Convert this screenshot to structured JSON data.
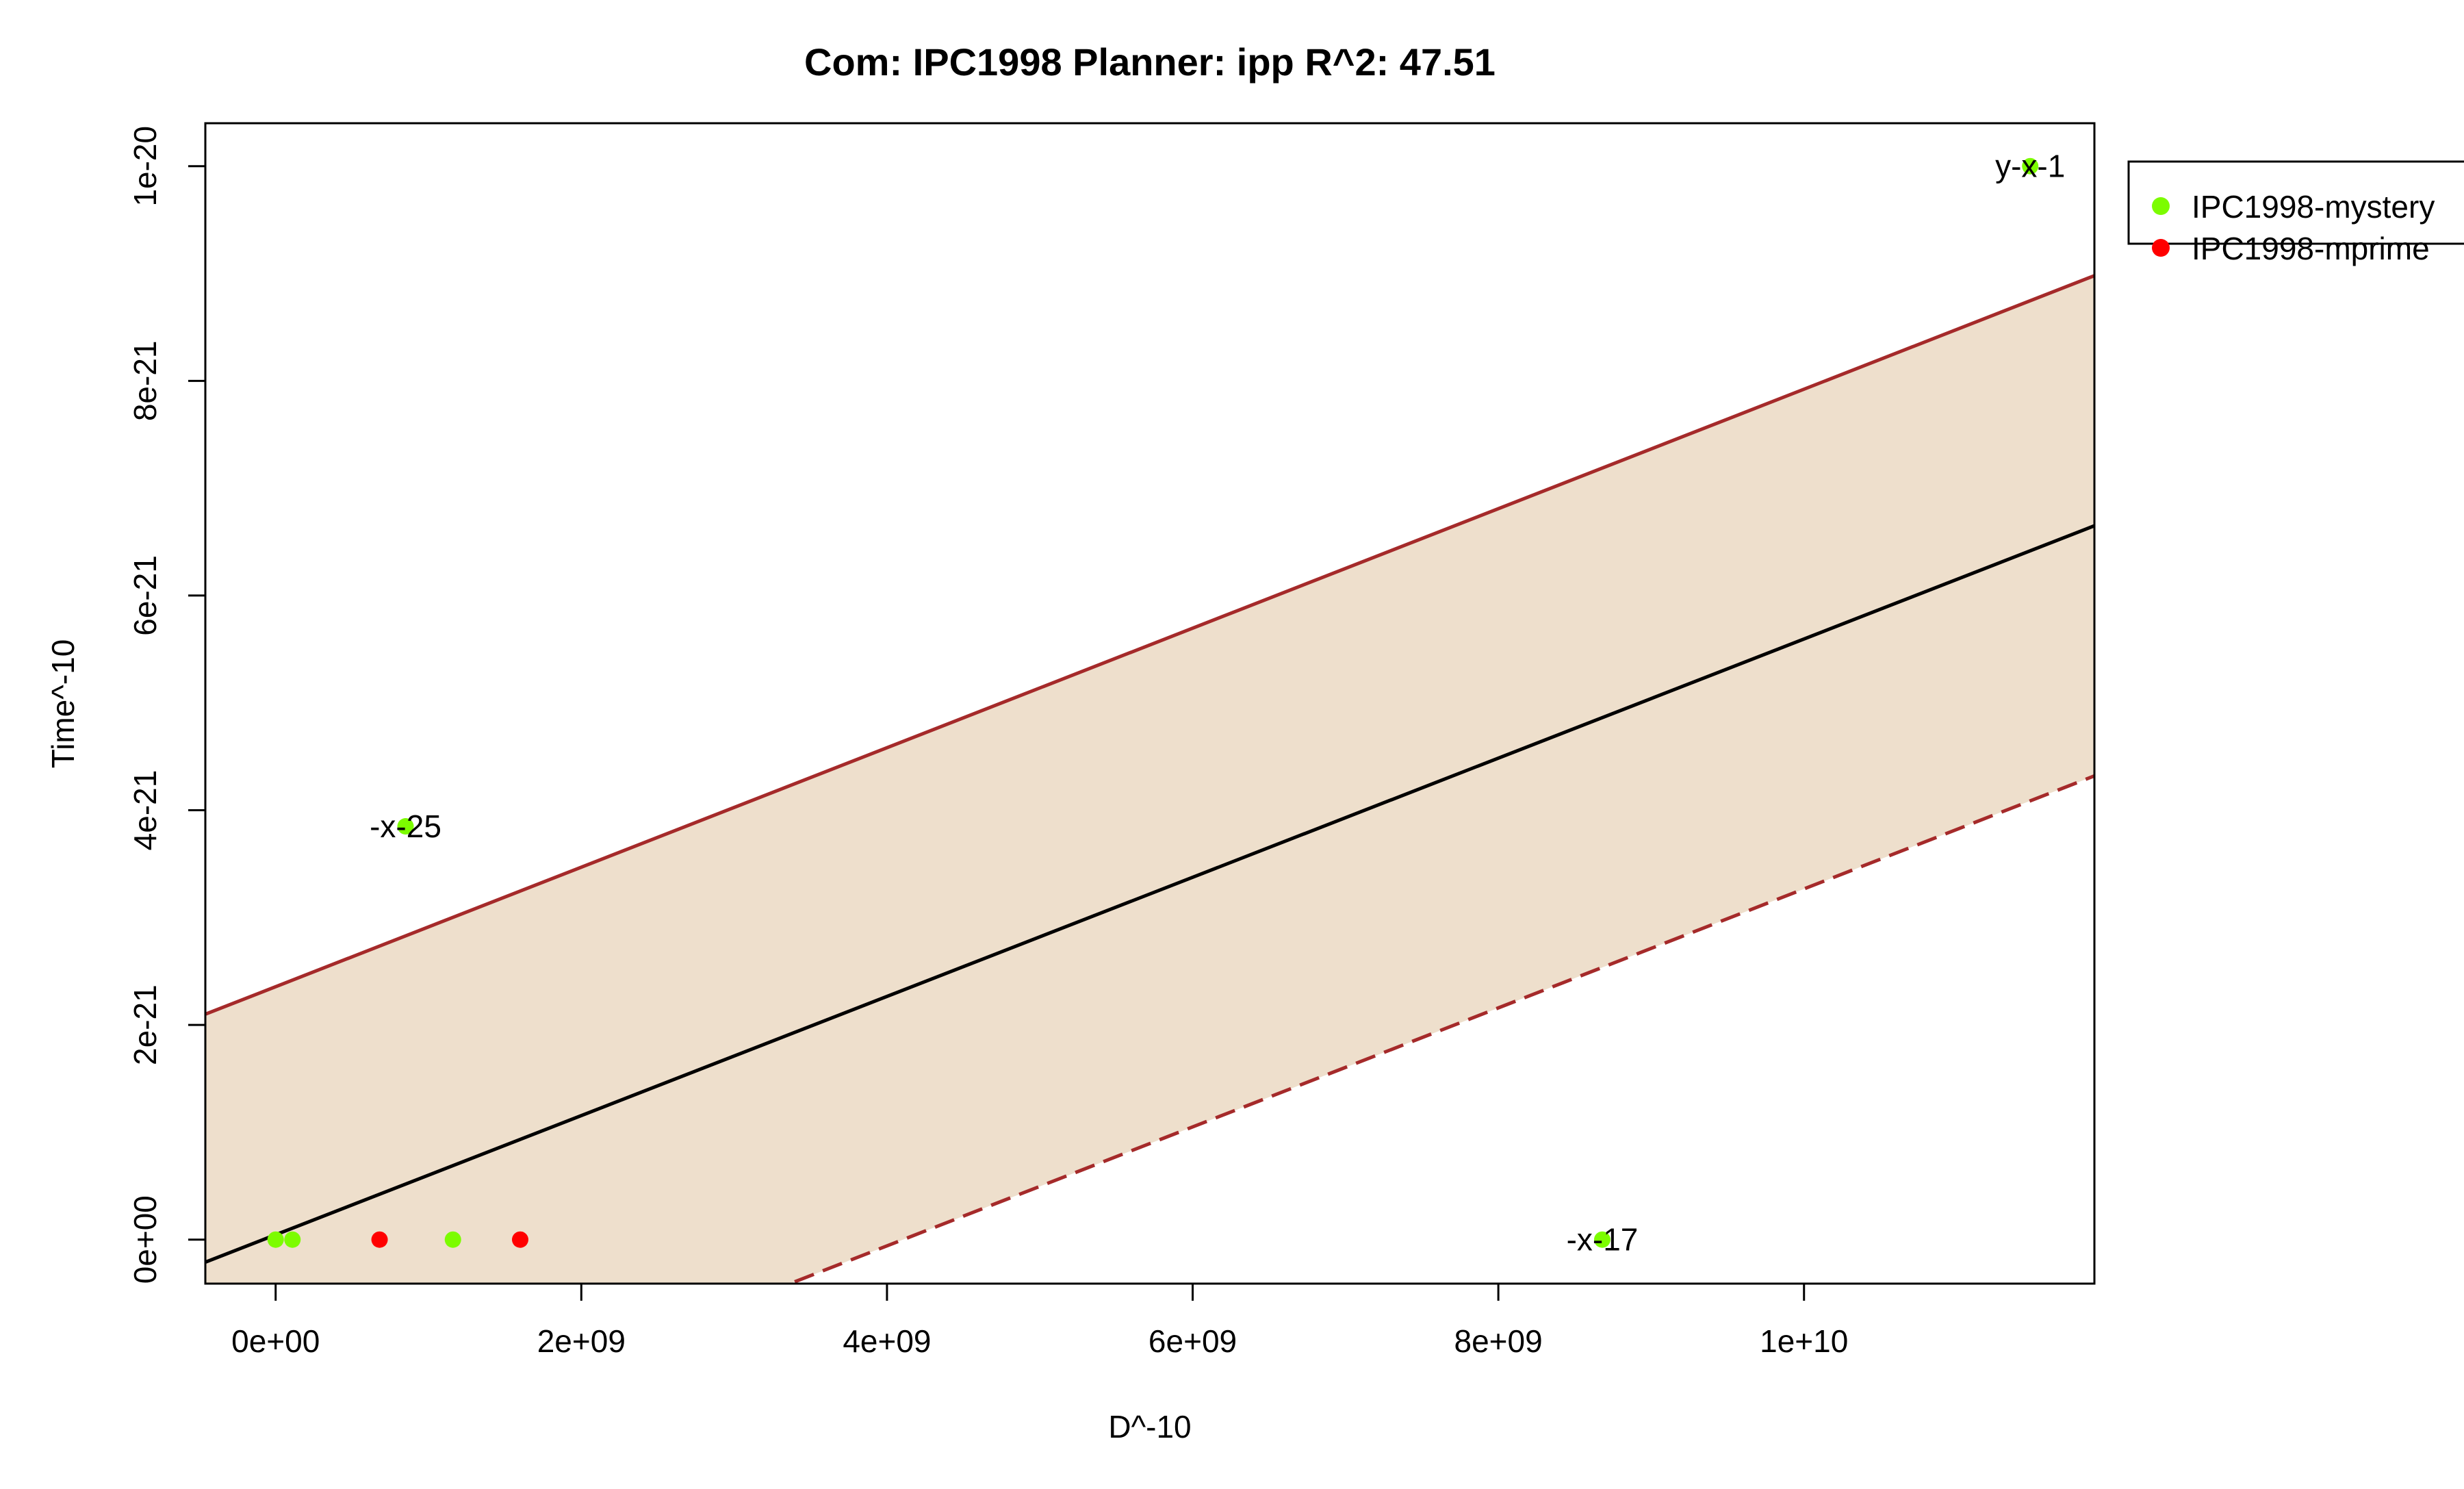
{
  "chart_data": {
    "type": "scatter",
    "title": "Com: IPC1998 Planner: ipp R^2: 47.51",
    "xlabel": "D^-10",
    "ylabel": "Time^-10",
    "xlim": [
      -460000000,
      11900000000
    ],
    "ylim": [
      -4.1e-22,
      1.04e-20
    ],
    "x_ticks": [
      0,
      2000000000,
      4000000000,
      6000000000,
      8000000000,
      10000000000
    ],
    "x_tick_labels": [
      "0e+00",
      "2e+09",
      "4e+09",
      "6e+09",
      "8e+09",
      "1e+10"
    ],
    "y_ticks": [
      0,
      2e-21,
      4e-21,
      6e-21,
      8e-21,
      1e-20
    ],
    "y_tick_labels": [
      "0e+00",
      "2e-21",
      "4e-21",
      "6e-21",
      "8e-21",
      "1e-20"
    ],
    "grid": false,
    "legend_position": "outside-top-right",
    "series": [
      {
        "name": "IPC1998-mystery",
        "color": "#7CFC00",
        "points": [
          {
            "x": 0,
            "y": 0,
            "label": ""
          },
          {
            "x": 110000000,
            "y": 0,
            "label": ""
          },
          {
            "x": 1160000000,
            "y": 0,
            "label": ""
          },
          {
            "x": 850000000,
            "y": 3.85e-21,
            "label": "-x-25"
          },
          {
            "x": 8680000000,
            "y": 0,
            "label": "-x-17"
          },
          {
            "x": 11480000000,
            "y": 1e-20,
            "label": "y-x-1"
          }
        ]
      },
      {
        "name": "IPC1998-mprime",
        "color": "#FF0000",
        "points": [
          {
            "x": 680000000,
            "y": 0,
            "label": ""
          },
          {
            "x": 1600000000,
            "y": 0,
            "label": ""
          }
        ]
      }
    ],
    "fit_line": {
      "color": "#000000",
      "y_at_xmin": -2.1e-22,
      "y_at_xmax": 6.65e-21
    },
    "upper_bound": {
      "color": "#A52A2A",
      "y_at_xmin": 2.1e-21,
      "y_at_xmax": 8.98e-21
    },
    "lower_bound": {
      "color": "#A52A2A",
      "y_at_xmin": -2.53e-21,
      "y_at_xmax": 4.32e-21
    },
    "band_color": "#EEDFCC"
  }
}
